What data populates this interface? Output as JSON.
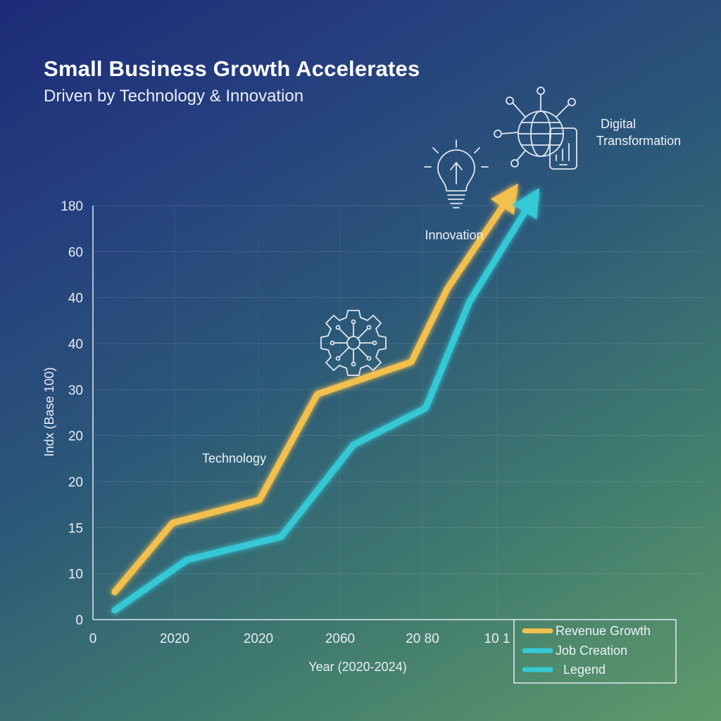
{
  "header": {
    "title": "Small Business Growth Accelerates",
    "subtitle": "Driven by Technology & Innovation"
  },
  "chart_data": {
    "type": "line",
    "ylabel": "Indx (Base 100)",
    "xlabel": "Year (2020-2024)",
    "y_tick_labels": [
      "0",
      "10",
      "15",
      "20",
      "20",
      "30",
      "40",
      "40",
      "60",
      "180"
    ],
    "x_tick_labels": [
      "0",
      "2020",
      "2020",
      "2060",
      "20 80",
      "10 1"
    ],
    "grid": true,
    "legend_position": "bottom-right",
    "series": [
      {
        "name": "Revenue Growth",
        "color": "#f3c04d",
        "arrow": true,
        "points": [
          [
            0.3,
            0.6
          ],
          [
            1.1,
            2.1
          ],
          [
            2.3,
            2.6
          ],
          [
            3.1,
            4.9
          ],
          [
            4.4,
            5.6
          ],
          [
            4.9,
            7.2
          ],
          [
            5.8,
            9.3
          ]
        ]
      },
      {
        "name": "Job Creation",
        "color": "#35c9d6",
        "arrow": true,
        "points": [
          [
            0.3,
            0.2
          ],
          [
            1.3,
            1.3
          ],
          [
            2.6,
            1.8
          ],
          [
            3.6,
            3.8
          ],
          [
            4.6,
            4.6
          ],
          [
            5.2,
            6.9
          ],
          [
            6.1,
            9.2
          ]
        ]
      }
    ],
    "legend": [
      {
        "label": "Revenue Growth",
        "color": "#f3c04d"
      },
      {
        "label": "Job Creation",
        "color": "#35c9d6"
      },
      {
        "label": "Legend",
        "color": "#35c9d6"
      }
    ],
    "annotations": [
      {
        "label": "Technology",
        "icon": "gear-circuit-icon"
      },
      {
        "label": "Innovation",
        "icon": "lightbulb-icon"
      },
      {
        "label_line1": "Digital",
        "label_line2": "Transformation",
        "icon": "globe-phone-icon"
      }
    ]
  }
}
